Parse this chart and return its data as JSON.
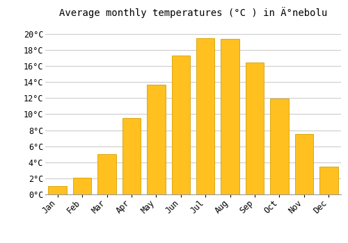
{
  "title": "Average monthly temperatures (°C ) in Ä°nebolu",
  "months": [
    "Jan",
    "Feb",
    "Mar",
    "Apr",
    "May",
    "Jun",
    "Jul",
    "Aug",
    "Sep",
    "Oct",
    "Nov",
    "Dec"
  ],
  "values": [
    1.0,
    2.1,
    5.0,
    9.5,
    13.7,
    17.3,
    19.5,
    19.4,
    16.4,
    11.9,
    7.5,
    3.5
  ],
  "bar_color": "#FFC020",
  "bar_edge_color": "#D4A000",
  "background_color": "#FFFFFF",
  "grid_color": "#CCCCCC",
  "ytick_labels": [
    "0°C",
    "2°C",
    "4°C",
    "6°C",
    "8°C",
    "10°C",
    "12°C",
    "14°C",
    "16°C",
    "18°C",
    "20°C"
  ],
  "ytick_values": [
    0,
    2,
    4,
    6,
    8,
    10,
    12,
    14,
    16,
    18,
    20
  ],
  "ylim": [
    0,
    21.5
  ],
  "title_fontsize": 10,
  "tick_fontsize": 8.5,
  "font_family": "monospace"
}
